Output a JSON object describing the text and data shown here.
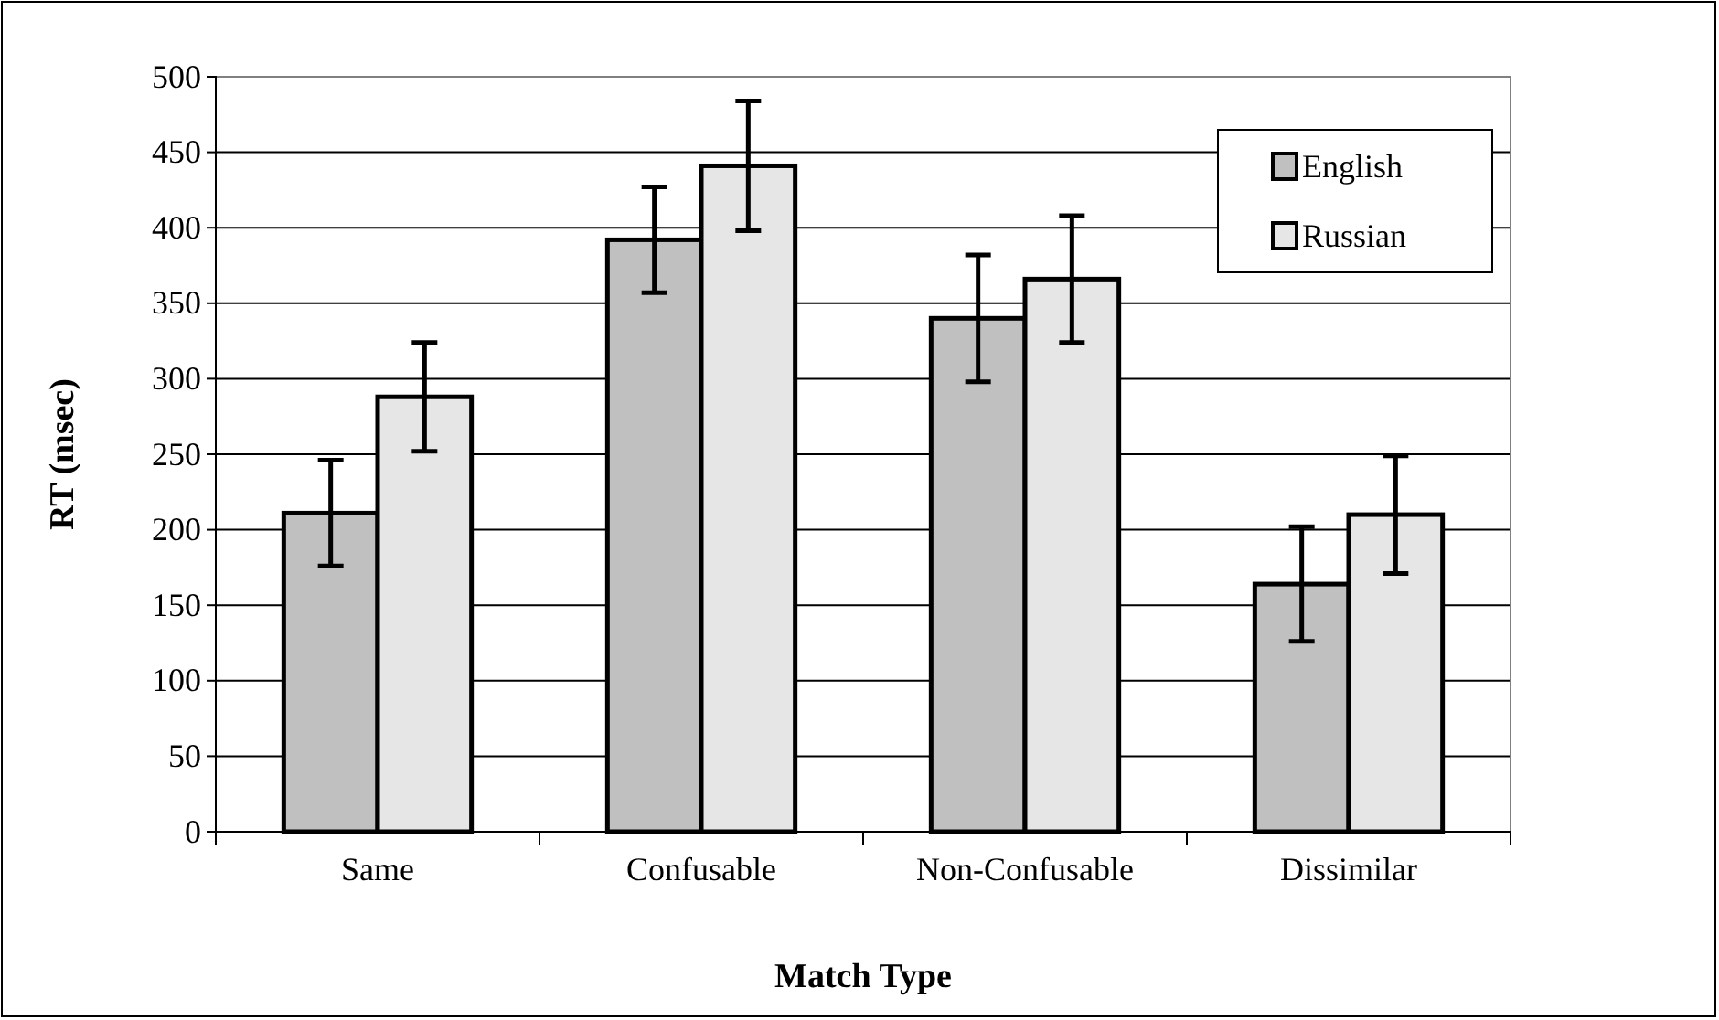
{
  "chart_data": {
    "type": "bar",
    "xlabel": "Match Type",
    "ylabel": "RT (msec)",
    "categories": [
      "Same",
      "Confusable",
      "Non-Confusable",
      "Dissimilar"
    ],
    "series": [
      {
        "name": "English",
        "color": "#c0c0c0",
        "values": [
          211,
          392,
          340,
          164
        ],
        "errors": [
          35,
          35,
          42,
          38
        ]
      },
      {
        "name": "Russian",
        "color": "#e6e6e6",
        "values": [
          288,
          441,
          366,
          210
        ],
        "errors": [
          36,
          43,
          42,
          39
        ]
      }
    ],
    "ylim": [
      0,
      500
    ],
    "yticks": [
      0,
      50,
      100,
      150,
      200,
      250,
      300,
      350,
      400,
      450,
      500
    ],
    "grid": "y",
    "legend": "top right"
  }
}
